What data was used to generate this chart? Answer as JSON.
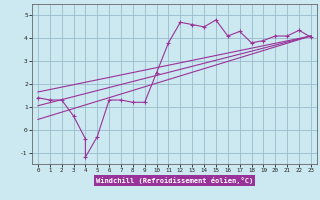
{
  "xlabel": "Windchill (Refroidissement éolien,°C)",
  "bg_color": "#cce8f0",
  "line_color": "#993399",
  "grid_color": "#99bbcc",
  "xlim": [
    -0.5,
    23.5
  ],
  "ylim": [
    -1.5,
    5.5
  ],
  "yticks": [
    -1,
    0,
    1,
    2,
    3,
    4,
    5
  ],
  "xticks": [
    0,
    1,
    2,
    3,
    4,
    5,
    6,
    7,
    8,
    9,
    10,
    11,
    12,
    13,
    14,
    15,
    16,
    17,
    18,
    19,
    20,
    21,
    22,
    23
  ],
  "data_x": [
    0,
    1,
    2,
    3,
    4,
    4,
    5,
    6,
    7,
    8,
    9,
    10,
    11,
    12,
    13,
    14,
    15,
    16,
    17,
    18,
    19,
    20,
    21,
    22,
    23
  ],
  "data_y": [
    1.4,
    1.3,
    1.3,
    0.6,
    -0.4,
    -1.2,
    -0.3,
    1.3,
    1.3,
    1.2,
    1.2,
    2.5,
    3.8,
    4.7,
    4.6,
    4.5,
    4.8,
    4.1,
    4.3,
    3.8,
    3.9,
    4.1,
    4.1,
    4.35,
    4.05
  ],
  "line1_x": [
    0,
    23
  ],
  "line1_y": [
    1.05,
    4.1
  ],
  "line2_x": [
    0,
    23
  ],
  "line2_y": [
    1.65,
    4.1
  ],
  "line3_x": [
    0,
    23
  ],
  "line3_y": [
    0.45,
    4.1
  ]
}
